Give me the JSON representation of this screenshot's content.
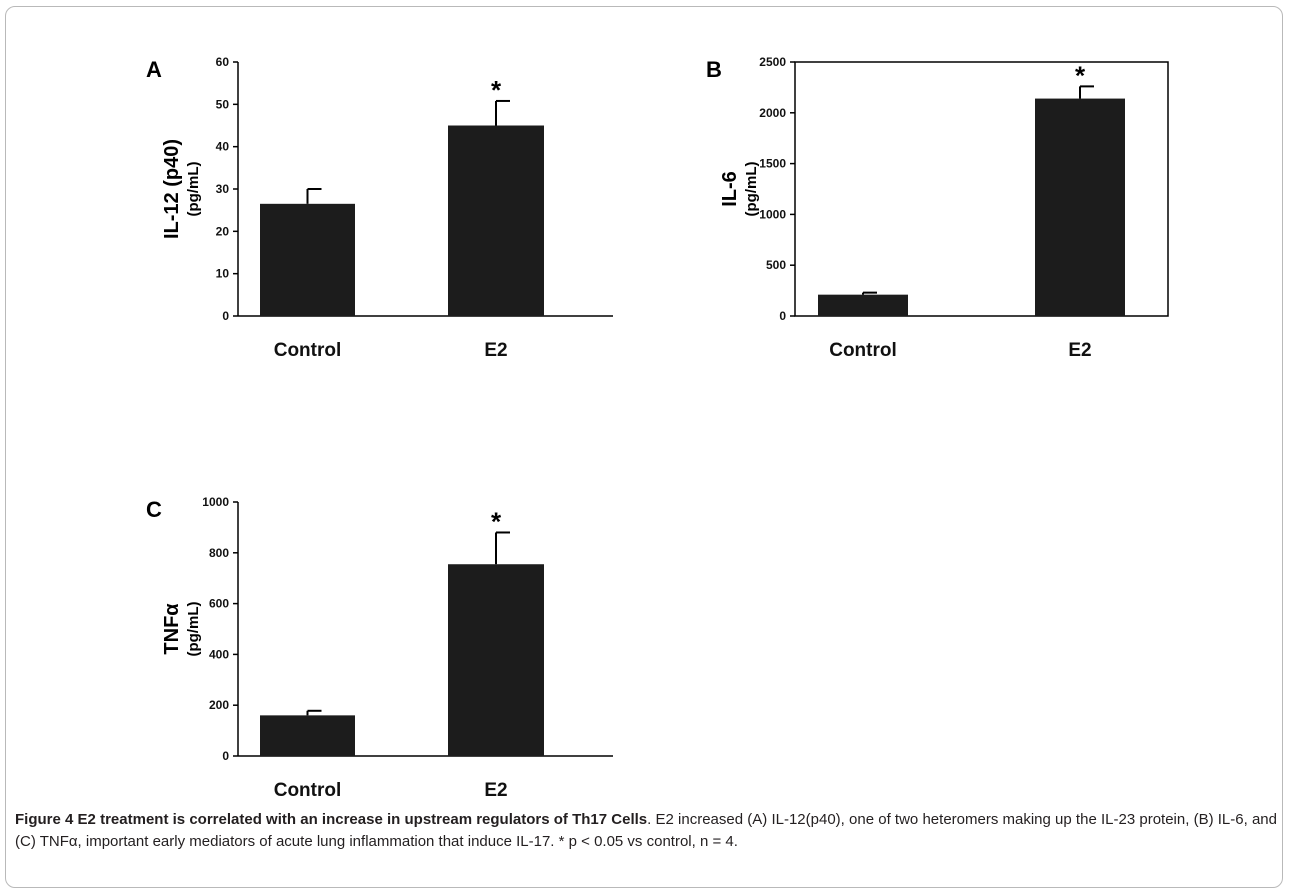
{
  "chart_data": [
    {
      "type": "bar",
      "panel": "A",
      "categories": [
        "Control",
        "E2"
      ],
      "values": [
        26.5,
        45
      ],
      "errors": [
        3.5,
        5.8
      ],
      "significance": [
        "",
        "*"
      ],
      "ylabel": "IL-12 (p40)",
      "ylabel_unit": "(pg/mL)",
      "ylim": [
        0,
        60
      ],
      "yticks": [
        0,
        10,
        20,
        30,
        40,
        50,
        60
      ]
    },
    {
      "type": "bar",
      "panel": "B",
      "categories": [
        "Control",
        "E2"
      ],
      "values": [
        210,
        2140
      ],
      "errors": [
        20,
        120
      ],
      "significance": [
        "",
        "*"
      ],
      "ylabel": "IL-6",
      "ylabel_unit": "(pg/mL)",
      "ylim": [
        0,
        2500
      ],
      "yticks": [
        0,
        500,
        1000,
        1500,
        2000,
        2500
      ]
    },
    {
      "type": "bar",
      "panel": "C",
      "categories": [
        "Control",
        "E2"
      ],
      "values": [
        160,
        755
      ],
      "errors": [
        18,
        125
      ],
      "significance": [
        "",
        "*"
      ],
      "ylabel": "TNFα",
      "ylabel_unit": "(pg/mL)",
      "ylim": [
        0,
        1000
      ],
      "yticks": [
        0,
        200,
        400,
        600,
        800,
        1000
      ]
    }
  ],
  "caption": {
    "title": "Figure 4 E2 treatment is correlated with an increase in upstream regulators of Th17 Cells",
    "body": ". E2 increased (A) IL-12(p40), one of two heteromers making up the IL-23 protein, (B) IL-6, and (C) TNFα, important early mediators of acute lung inflammation that induce IL-17. * p < 0.05 vs control, n = 4."
  },
  "colors": {
    "bar": "#1c1c1c",
    "axis": "#000000",
    "frame": "#b9b9b9"
  }
}
